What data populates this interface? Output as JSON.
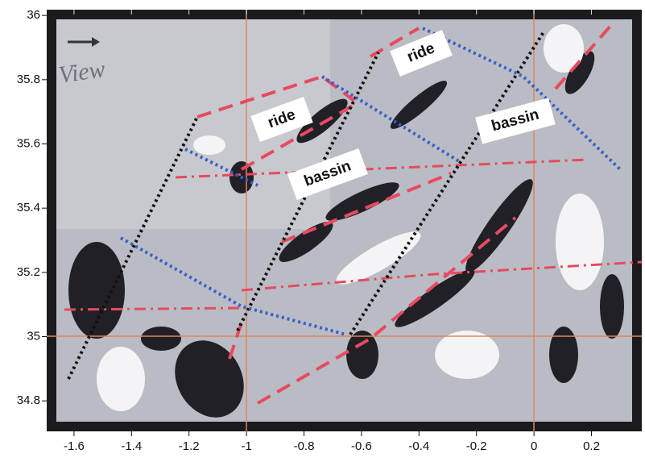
{
  "chart_data": {
    "type": "image",
    "xlim": [
      -1.695,
      0.375
    ],
    "ylim": [
      34.705,
      36.018
    ],
    "xticks": [
      -1.6,
      -1.4,
      -1.2,
      -1,
      -0.8,
      -0.6,
      -0.4,
      -0.2,
      0,
      0.2
    ],
    "yticks": [
      34.8,
      35,
      35.2,
      35.4,
      35.6,
      35.8,
      36
    ],
    "annotations": [
      "View",
      "ride",
      "ride",
      "bassin",
      "bassin"
    ]
  }
}
